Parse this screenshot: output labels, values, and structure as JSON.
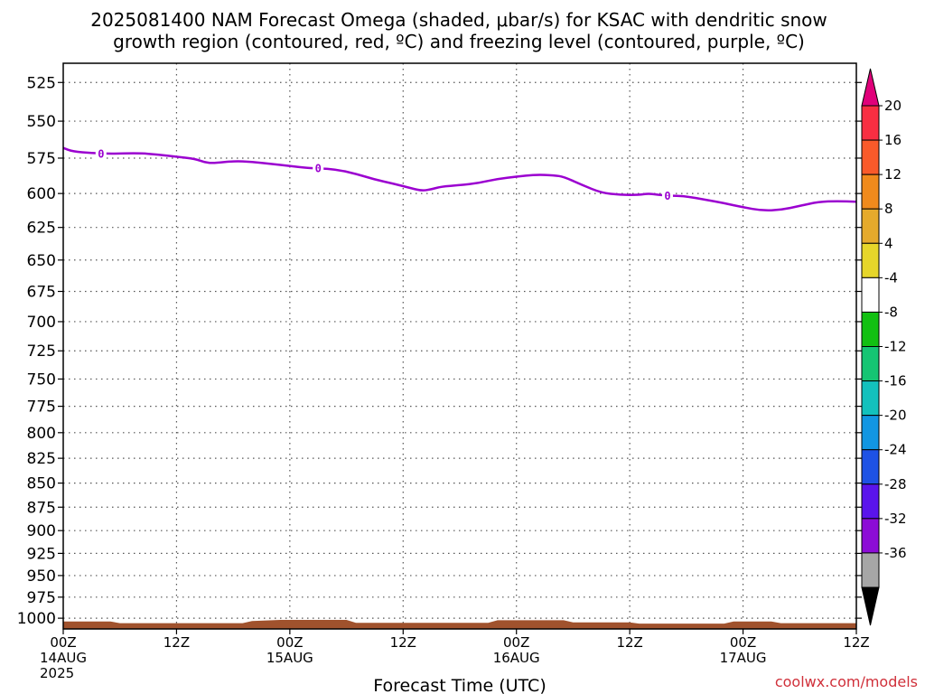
{
  "title": {
    "line1": "2025081400 NAM Forecast Omega (shaded, μbar/s) for KSAC with dendritic snow",
    "line2": "growth region (contoured, red, ºC) and freezing level (contoured, purple, ºC)"
  },
  "credit": "coolwx.com/models",
  "chart_data": {
    "type": "time-height contour",
    "xlabel": "Forecast Time (UTC)",
    "ylabel": "",
    "x_range_hours": [
      0,
      84
    ],
    "y_range_mb": [
      513,
      1013
    ],
    "y_axis": "pressure (mb), inverted, log scale",
    "y_ticks": [
      525,
      550,
      575,
      600,
      625,
      650,
      675,
      700,
      725,
      750,
      775,
      800,
      825,
      850,
      875,
      900,
      925,
      950,
      975,
      1000
    ],
    "x_ticks": [
      {
        "hour": 0,
        "lines": [
          "00Z",
          "14AUG",
          "2025"
        ]
      },
      {
        "hour": 12,
        "lines": [
          "12Z"
        ]
      },
      {
        "hour": 24,
        "lines": [
          "00Z",
          "15AUG"
        ]
      },
      {
        "hour": 36,
        "lines": [
          "12Z"
        ]
      },
      {
        "hour": 48,
        "lines": [
          "00Z",
          "16AUG"
        ]
      },
      {
        "hour": 60,
        "lines": [
          "12Z"
        ]
      },
      {
        "hour": 72,
        "lines": [
          "00Z",
          "17AUG"
        ]
      },
      {
        "hour": 84,
        "lines": [
          "12Z"
        ]
      }
    ],
    "grid": true,
    "freezing_level": {
      "color": "#9b00d0",
      "contour_label": "0",
      "label_hours": [
        4,
        27,
        64
      ],
      "points": [
        [
          0,
          568
        ],
        [
          1,
          570.5
        ],
        [
          3,
          571.5
        ],
        [
          5,
          572
        ],
        [
          8,
          571.5
        ],
        [
          10,
          572.5
        ],
        [
          12,
          574
        ],
        [
          14,
          575.5
        ],
        [
          15,
          578
        ],
        [
          16,
          578.5
        ],
        [
          18,
          577
        ],
        [
          20,
          577.5
        ],
        [
          22,
          579
        ],
        [
          24,
          580.5
        ],
        [
          26,
          582
        ],
        [
          27,
          582
        ],
        [
          29,
          583
        ],
        [
          31,
          586
        ],
        [
          33,
          590
        ],
        [
          35,
          593
        ],
        [
          37,
          596.5
        ],
        [
          38,
          598
        ],
        [
          39,
          597
        ],
        [
          40,
          595
        ],
        [
          42,
          594
        ],
        [
          44,
          592.5
        ],
        [
          46,
          589.5
        ],
        [
          48,
          588
        ],
        [
          50,
          586.5
        ],
        [
          52,
          587
        ],
        [
          53,
          588
        ],
        [
          55,
          594
        ],
        [
          57,
          599.5
        ],
        [
          59,
          601
        ],
        [
          61,
          601
        ],
        [
          62,
          600
        ],
        [
          63,
          601
        ],
        [
          64,
          601.5
        ],
        [
          66,
          602
        ],
        [
          68,
          604.5
        ],
        [
          70,
          607
        ],
        [
          72,
          610
        ],
        [
          74,
          612.5
        ],
        [
          76,
          612
        ],
        [
          78,
          609
        ],
        [
          80,
          606
        ],
        [
          82,
          605.5
        ],
        [
          84,
          606
        ]
      ]
    },
    "terrain": {
      "color": "#a0522d",
      "points": [
        [
          0,
          1004
        ],
        [
          5,
          1004
        ],
        [
          6,
          1006
        ],
        [
          19,
          1006
        ],
        [
          20,
          1003.5
        ],
        [
          23,
          1002
        ],
        [
          30,
          1002
        ],
        [
          31,
          1005.5
        ],
        [
          45,
          1005.5
        ],
        [
          46,
          1002.5
        ],
        [
          53,
          1002.5
        ],
        [
          54,
          1005
        ],
        [
          60,
          1005
        ],
        [
          61,
          1006.5
        ],
        [
          70,
          1006.5
        ],
        [
          71,
          1004
        ],
        [
          75,
          1004
        ],
        [
          76,
          1006
        ],
        [
          84,
          1006
        ]
      ]
    },
    "colorbar": {
      "labels": [
        "20",
        "16",
        "12",
        "8",
        "4",
        "-4",
        "-8",
        "-12",
        "-16",
        "-20",
        "-24",
        "-28",
        "-32",
        "-36"
      ],
      "top_arrow_color": "#e0007a",
      "bottom_arrow_color": "#000000",
      "colors": [
        "#f82e42",
        "#f95a2a",
        "#f08a1c",
        "#e5aa2c",
        "#e6d62a",
        "#ffffff",
        "#12c012",
        "#15c573",
        "#13c1bd",
        "#1296e2",
        "#1e52e5",
        "#5a14ec",
        "#8c0cd6",
        "#a6a6a6"
      ]
    }
  }
}
